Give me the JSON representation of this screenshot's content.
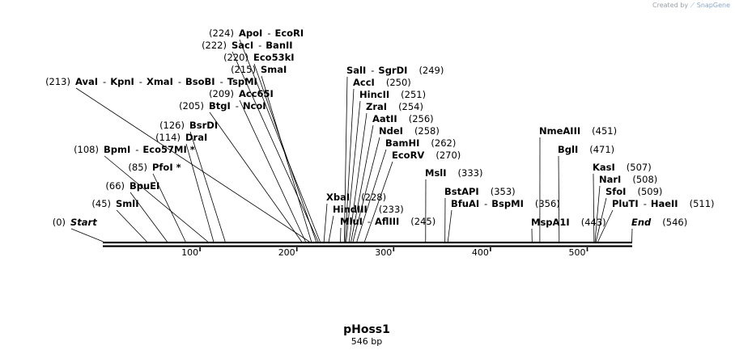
{
  "credit": {
    "prefix": "Created by",
    "brand": "SnapGene"
  },
  "plasmid": {
    "name": "pHoss1",
    "length_label": "546 bp"
  },
  "axis": {
    "length": 546,
    "ticks": [
      100,
      200,
      300,
      400,
      500
    ]
  },
  "labels": [
    {
      "id": "start",
      "enzymes": [
        {
          "text": "Start",
          "italic": true
        }
      ],
      "pos": 0,
      "pos_text": "(0)",
      "pos_side": "left",
      "cut_site": 0
    },
    {
      "id": "smli",
      "enzymes": [
        {
          "text": "SmlI"
        }
      ],
      "pos": 45,
      "pos_text": "(45)",
      "pos_side": "left",
      "cut_site": 45
    },
    {
      "id": "bpuei",
      "enzymes": [
        {
          "text": "BpuEI"
        }
      ],
      "pos": 66,
      "pos_text": "(66)",
      "pos_side": "left",
      "cut_site": 66
    },
    {
      "id": "pfoi",
      "enzymes": [
        {
          "text": "PfoI *"
        }
      ],
      "pos": 85,
      "pos_text": "(85)",
      "pos_side": "left",
      "cut_site": 85
    },
    {
      "id": "bpmi",
      "enzymes": [
        {
          "text": "BpmI"
        },
        {
          "text": "Eco57MI *"
        }
      ],
      "pos": 108,
      "pos_text": "(108)",
      "pos_side": "left",
      "cut_site": 108
    },
    {
      "id": "drai",
      "enzymes": [
        {
          "text": "DraI"
        }
      ],
      "pos": 114,
      "pos_text": "(114)",
      "pos_side": "left",
      "cut_site": 114
    },
    {
      "id": "bsrdi",
      "enzymes": [
        {
          "text": "BsrDI"
        }
      ],
      "pos": 126,
      "pos_text": "(126)",
      "pos_side": "left",
      "cut_site": 126
    },
    {
      "id": "btgi",
      "enzymes": [
        {
          "text": "BtgI"
        },
        {
          "text": "NcoI"
        }
      ],
      "pos": 205,
      "pos_text": "(205)",
      "pos_side": "left",
      "cut_site": 205
    },
    {
      "id": "acc65i",
      "enzymes": [
        {
          "text": "Acc65I"
        }
      ],
      "pos": 209,
      "pos_text": "(209)",
      "pos_side": "left",
      "cut_site": 209
    },
    {
      "id": "avai",
      "enzymes": [
        {
          "text": "AvaI"
        },
        {
          "text": "KpnI"
        },
        {
          "text": "XmaI"
        },
        {
          "text": "BsoBI"
        },
        {
          "text": "TspMI"
        }
      ],
      "pos": 213,
      "pos_text": "(213)",
      "pos_side": "left",
      "cut_site": 213
    },
    {
      "id": "smai",
      "enzymes": [
        {
          "text": "SmaI"
        }
      ],
      "pos": 215,
      "pos_text": "(215)",
      "pos_side": "left",
      "cut_site": 215
    },
    {
      "id": "eco53ki",
      "enzymes": [
        {
          "text": "Eco53kI"
        }
      ],
      "pos": 220,
      "pos_text": "(220)",
      "pos_side": "left",
      "cut_site": 220
    },
    {
      "id": "saci",
      "enzymes": [
        {
          "text": "SacI"
        },
        {
          "text": "BanII"
        }
      ],
      "pos": 222,
      "pos_text": "(222)",
      "pos_side": "left",
      "cut_site": 222
    },
    {
      "id": "apoi",
      "enzymes": [
        {
          "text": "ApoI"
        },
        {
          "text": "EcoRI"
        }
      ],
      "pos": 224,
      "pos_text": "(224)",
      "pos_side": "left",
      "cut_site": 224
    },
    {
      "id": "xbai",
      "enzymes": [
        {
          "text": "XbaI"
        }
      ],
      "pos": 228,
      "pos_text": "(228)",
      "pos_side": "right",
      "cut_site": 228
    },
    {
      "id": "hindiii",
      "enzymes": [
        {
          "text": "HindIII"
        }
      ],
      "pos": 233,
      "pos_text": "(233)",
      "pos_side": "right",
      "cut_site": 233
    },
    {
      "id": "mlui",
      "enzymes": [
        {
          "text": "MluI"
        },
        {
          "text": "AflIII"
        }
      ],
      "pos": 245,
      "pos_text": "(245)",
      "pos_side": "right",
      "cut_site": 245
    },
    {
      "id": "sali",
      "enzymes": [
        {
          "text": "SalI"
        },
        {
          "text": "SgrDI"
        }
      ],
      "pos": 249,
      "pos_text": "(249)",
      "pos_side": "right",
      "cut_site": 249
    },
    {
      "id": "acci",
      "enzymes": [
        {
          "text": "AccI"
        }
      ],
      "pos": 250,
      "pos_text": "(250)",
      "pos_side": "right",
      "cut_site": 250
    },
    {
      "id": "hincii",
      "enzymes": [
        {
          "text": "HincII"
        }
      ],
      "pos": 251,
      "pos_text": "(251)",
      "pos_side": "right",
      "cut_site": 251
    },
    {
      "id": "zrai",
      "enzymes": [
        {
          "text": "ZraI"
        }
      ],
      "pos": 254,
      "pos_text": "(254)",
      "pos_side": "right",
      "cut_site": 254
    },
    {
      "id": "aatii",
      "enzymes": [
        {
          "text": "AatII"
        }
      ],
      "pos": 256,
      "pos_text": "(256)",
      "pos_side": "right",
      "cut_site": 256
    },
    {
      "id": "ndei",
      "enzymes": [
        {
          "text": "NdeI"
        }
      ],
      "pos": 258,
      "pos_text": "(258)",
      "pos_side": "right",
      "cut_site": 258
    },
    {
      "id": "bamhi",
      "enzymes": [
        {
          "text": "BamHI"
        }
      ],
      "pos": 262,
      "pos_text": "(262)",
      "pos_side": "right",
      "cut_site": 262
    },
    {
      "id": "ecorv",
      "enzymes": [
        {
          "text": "EcoRV"
        }
      ],
      "pos": 270,
      "pos_text": "(270)",
      "pos_side": "right",
      "cut_site": 270
    },
    {
      "id": "msli",
      "enzymes": [
        {
          "text": "MslI"
        }
      ],
      "pos": 333,
      "pos_text": "(333)",
      "pos_side": "right",
      "cut_site": 333
    },
    {
      "id": "bstapi",
      "enzymes": [
        {
          "text": "BstAPI"
        }
      ],
      "pos": 353,
      "pos_text": "(353)",
      "pos_side": "right",
      "cut_site": 353
    },
    {
      "id": "bfuai",
      "enzymes": [
        {
          "text": "BfuAI"
        },
        {
          "text": "BspMI"
        }
      ],
      "pos": 356,
      "pos_text": "(356)",
      "pos_side": "right",
      "cut_site": 356
    },
    {
      "id": "mspa1i",
      "enzymes": [
        {
          "text": "MspA1I"
        }
      ],
      "pos": 443,
      "pos_text": "(443)",
      "pos_side": "right",
      "cut_site": 443
    },
    {
      "id": "nmeaiii",
      "enzymes": [
        {
          "text": "NmeAIII"
        }
      ],
      "pos": 451,
      "pos_text": "(451)",
      "pos_side": "right",
      "cut_site": 451
    },
    {
      "id": "bgli",
      "enzymes": [
        {
          "text": "BglI"
        }
      ],
      "pos": 471,
      "pos_text": "(471)",
      "pos_side": "right",
      "cut_site": 471
    },
    {
      "id": "kasi",
      "enzymes": [
        {
          "text": "KasI"
        }
      ],
      "pos": 507,
      "pos_text": "(507)",
      "pos_side": "right",
      "cut_site": 507
    },
    {
      "id": "nari",
      "enzymes": [
        {
          "text": "NarI"
        }
      ],
      "pos": 508,
      "pos_text": "(508)",
      "pos_side": "right",
      "cut_site": 508
    },
    {
      "id": "sfoi",
      "enzymes": [
        {
          "text": "SfoI"
        }
      ],
      "pos": 509,
      "pos_text": "(509)",
      "pos_side": "right",
      "cut_site": 509
    },
    {
      "id": "pluti",
      "enzymes": [
        {
          "text": "PluTI"
        },
        {
          "text": "HaeII"
        }
      ],
      "pos": 511,
      "pos_text": "(511)",
      "pos_side": "right",
      "cut_site": 511
    },
    {
      "id": "end",
      "enzymes": [
        {
          "text": "End",
          "italic": true
        }
      ],
      "pos": 546,
      "pos_text": "(546)",
      "pos_side": "right",
      "cut_site": 546
    }
  ]
}
